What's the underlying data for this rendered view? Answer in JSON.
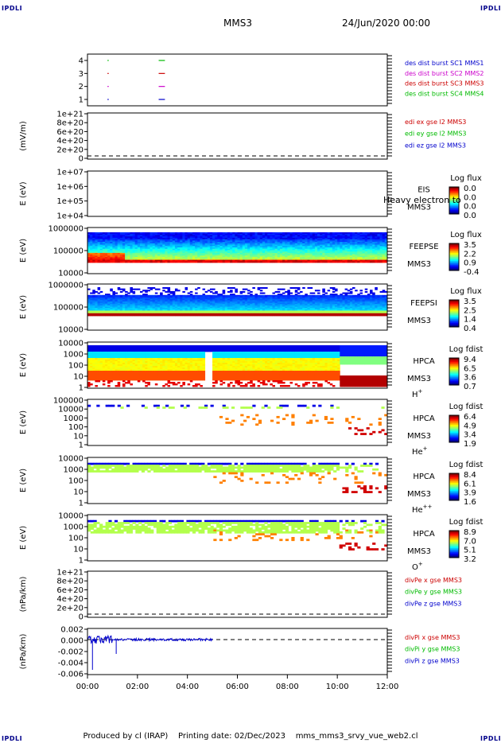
{
  "corner_label": "IPDLI",
  "header": {
    "mission": "MMS3",
    "date": "24/Jun/2020 00:00"
  },
  "footer": "Produced by cl (IRAP)    Printing date: 02/Dec/2023    mms_mms3_srvy_vue_web2.cl",
  "chart_data": {
    "type": "multi-panel time series / spectrogram",
    "x_ticks": [
      "00:00",
      "02:00",
      "04:00",
      "06:00",
      "08:00",
      "10:00",
      "12:00"
    ],
    "xlim_hours": [
      0,
      12
    ],
    "panels": [
      {
        "id": "burst",
        "type": "line",
        "yticks": [
          "4",
          "3",
          "2",
          "1"
        ],
        "legend": [
          {
            "text": "des dist burst SC1 MMS1",
            "color": "#0000cc"
          },
          {
            "text": "des dist burst SC2 MMS2",
            "color": "#cc00cc"
          },
          {
            "text": "des dist burst SC3 MMS3",
            "color": "#cc0000"
          },
          {
            "text": "des dist burst SC4 MMS4",
            "color": "#00bb00"
          }
        ],
        "bursts": [
          {
            "y": 4,
            "t": [
              0.8,
              0.85
            ],
            "color": "#00bb00"
          },
          {
            "y": 4,
            "t": [
              2.85,
              3.1
            ],
            "color": "#00bb00"
          },
          {
            "y": 3,
            "t": [
              0.8,
              0.85
            ],
            "color": "#cc0000"
          },
          {
            "y": 3,
            "t": [
              2.85,
              3.1
            ],
            "color": "#cc0000"
          },
          {
            "y": 2,
            "t": [
              0.8,
              0.85
            ],
            "color": "#cc00cc"
          },
          {
            "y": 2,
            "t": [
              2.85,
              3.1
            ],
            "color": "#cc00cc"
          },
          {
            "y": 1,
            "t": [
              0.8,
              0.85
            ],
            "color": "#0000cc"
          },
          {
            "y": 1,
            "t": [
              2.85,
              3.1
            ],
            "color": "#0000cc"
          }
        ]
      },
      {
        "id": "edi",
        "type": "line",
        "ylabel": "(mV/m)",
        "yticks": [
          "1e+21",
          "8e+20",
          "6e+20",
          "4e+20",
          "2e+20",
          "0"
        ],
        "legend": [
          {
            "text": "edi ex gse l2 MMS3",
            "color": "#cc0000"
          },
          {
            "text": "edi ey gse l2 MMS3",
            "color": "#00bb00"
          },
          {
            "text": "edi ez gse l2 MMS3",
            "color": "#0000cc"
          }
        ]
      },
      {
        "id": "eis",
        "type": "heatmap",
        "ylabel": "E (eV)",
        "yticks": [
          "1e+07",
          "1e+06",
          "1e+05",
          "1e+04"
        ],
        "label_lines": [
          "EIS",
          "MMS3"
        ],
        "overlay_text": "Heavy electron to",
        "cb_title": "Log flux",
        "cb_ticks": [
          "0.0",
          "0.0",
          "0.0",
          "0.0"
        ]
      },
      {
        "id": "feepse",
        "type": "heatmap",
        "ylabel": "E (eV)",
        "yticks": [
          "1000000",
          "100000",
          "10000"
        ],
        "label_lines": [
          "FEEPSE",
          "MMS3"
        ],
        "cb_title": "Log flux",
        "cb_ticks": [
          "3.5",
          "2.2",
          "0.9",
          "-0.4"
        ]
      },
      {
        "id": "feepsi",
        "type": "heatmap",
        "ylabel": "E (eV)",
        "yticks": [
          "1000000",
          "100000",
          "10000"
        ],
        "label_lines": [
          "FEEPSI",
          "MMS3"
        ],
        "cb_title": "Log flux",
        "cb_ticks": [
          "3.5",
          "2.5",
          "1.4",
          "0.4"
        ]
      },
      {
        "id": "hpca_h",
        "type": "heatmap",
        "ylabel": "E (eV)",
        "yticks": [
          "10000",
          "1000",
          "100",
          "10",
          "1"
        ],
        "label_lines": [
          "HPCA",
          "MMS3"
        ],
        "species": "H",
        "charge": "+",
        "cb_title": "Log fdist",
        "cb_ticks": [
          "9.4",
          "6.5",
          "3.6",
          "0.7"
        ]
      },
      {
        "id": "hpca_he",
        "type": "heatmap",
        "ylabel": "E (eV)",
        "yticks": [
          "100000",
          "10000",
          "1000",
          "100",
          "10",
          "1"
        ],
        "label_lines": [
          "HPCA",
          "MMS3"
        ],
        "species": "He",
        "charge": "+",
        "cb_title": "Log fdist",
        "cb_ticks": [
          "6.4",
          "4.9",
          "3.4",
          "1.9"
        ]
      },
      {
        "id": "hpca_he2",
        "type": "heatmap",
        "ylabel": "E (eV)",
        "yticks": [
          "10000",
          "1000",
          "100",
          "10",
          "1"
        ],
        "label_lines": [
          "HPCA",
          "MMS3"
        ],
        "species": "He",
        "charge": "++",
        "cb_title": "Log fdist",
        "cb_ticks": [
          "8.4",
          "6.1",
          "3.9",
          "1.6"
        ]
      },
      {
        "id": "hpca_o",
        "type": "heatmap",
        "ylabel": "E (eV)",
        "yticks": [
          "10000",
          "1000",
          "100",
          "10",
          "1"
        ],
        "label_lines": [
          "HPCA",
          "MMS3"
        ],
        "species": "O",
        "charge": "+",
        "cb_title": "Log fdist",
        "cb_ticks": [
          "8.9",
          "7.0",
          "5.1",
          "3.2"
        ]
      },
      {
        "id": "divpe",
        "type": "line",
        "ylabel": "(nPa/km)",
        "yticks": [
          "1e+21",
          "8e+20",
          "6e+20",
          "4e+20",
          "2e+20",
          "0"
        ],
        "legend": [
          {
            "text": "divPe x gse MMS3",
            "color": "#cc0000"
          },
          {
            "text": "divPe y gse MMS3",
            "color": "#00bb00"
          },
          {
            "text": "divPe z gse MMS3",
            "color": "#0000cc"
          }
        ]
      },
      {
        "id": "divpi",
        "type": "line",
        "ylabel": "(nPa/km)",
        "yticks": [
          "0.002",
          "0.000",
          "-0.002",
          "-0.004",
          "-0.006"
        ],
        "ylim": [
          -0.007,
          0.003
        ],
        "legend": [
          {
            "text": "divPi x gse MMS3",
            "color": "#cc0000"
          },
          {
            "text": "divPi y gse MMS3",
            "color": "#00bb00"
          },
          {
            "text": "divPi z gse MMS3",
            "color": "#0000cc"
          }
        ]
      }
    ]
  }
}
